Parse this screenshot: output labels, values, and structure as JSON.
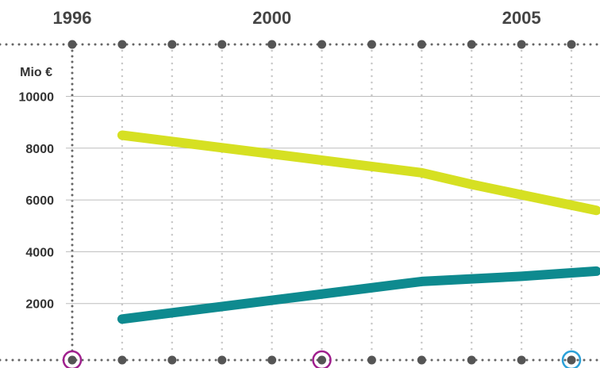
{
  "chart_data": {
    "type": "line",
    "unit_label": "Mio €",
    "x_labels": [
      {
        "year": 1996,
        "label": "1996"
      },
      {
        "year": 2000,
        "label": "2000"
      },
      {
        "year": 2005,
        "label": "2005"
      }
    ],
    "x_range": [
      1996,
      2006.5
    ],
    "y_ticks": [
      2000,
      4000,
      6000,
      8000,
      10000
    ],
    "ylim": [
      0,
      10000
    ],
    "grid": true,
    "series": [
      {
        "color": "#d6e022",
        "points": [
          [
            1997,
            8500
          ],
          [
            2003,
            7050
          ],
          [
            2004,
            6600
          ],
          [
            2005,
            6200
          ],
          [
            2006.5,
            5600
          ]
        ]
      },
      {
        "color": "#0e8a8f",
        "points": [
          [
            1997,
            1400
          ],
          [
            2003,
            2850
          ],
          [
            2005,
            3050
          ],
          [
            2006.5,
            3250
          ]
        ]
      }
    ],
    "markers": [
      {
        "year": 1996,
        "color": "#a0208e"
      },
      {
        "year": 2001,
        "color": "#a0208e"
      },
      {
        "year": 2006,
        "color": "#2aa0d8"
      }
    ],
    "colors": {
      "axis_dots": "#666666",
      "grid_minor": "#c8c8c8",
      "grid_major": "#bdbdbd"
    }
  }
}
